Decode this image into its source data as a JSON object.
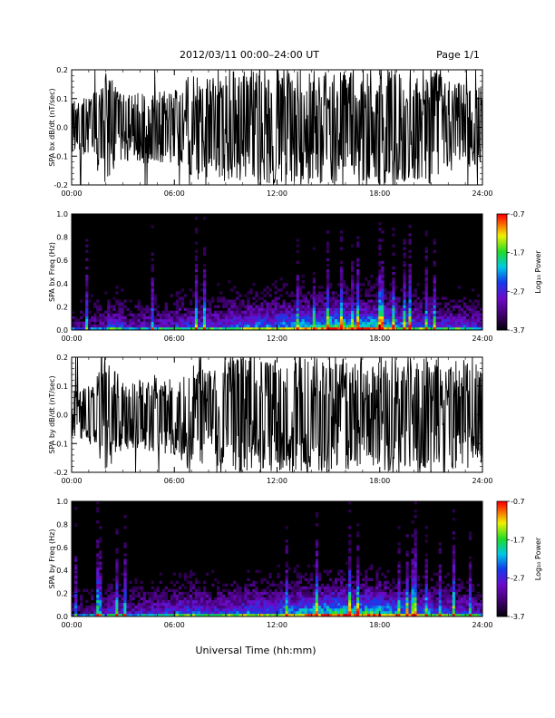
{
  "header": {
    "title": "2012/03/11   00:00–24:00 UT",
    "page": "Page 1/1"
  },
  "footer": {
    "xlabel": "Universal Time (hh:mm)"
  },
  "chart_data": [
    {
      "type": "line",
      "ylabel": "SPA bx dB/dt (nT/sec)",
      "xlabel": "",
      "x_ticks": [
        "00:00",
        "06:00",
        "12:00",
        "18:00",
        "24:00"
      ],
      "xlim": [
        0,
        24
      ],
      "ylim": [
        -0.2,
        0.2
      ],
      "y_ticks": [
        "-0.2",
        "-0.1",
        "0.0",
        "0.1",
        "0.2"
      ],
      "series": [
        {
          "x": [
            0,
            1,
            2,
            3,
            4,
            5,
            6,
            7,
            8,
            9,
            10,
            11,
            12,
            13,
            14,
            15,
            16,
            17,
            18,
            19,
            20,
            21,
            22,
            23,
            24
          ],
          "min": [
            -0.09,
            -0.1,
            -0.2,
            -0.12,
            -0.13,
            -0.12,
            -0.13,
            -0.2,
            -0.17,
            -0.2,
            -0.2,
            -0.2,
            -0.2,
            -0.2,
            -0.2,
            -0.2,
            -0.2,
            -0.2,
            -0.2,
            -0.2,
            -0.18,
            -0.2,
            -0.17,
            -0.15,
            -0.12
          ],
          "max": [
            0.1,
            0.11,
            0.2,
            0.13,
            0.12,
            0.13,
            0.14,
            0.2,
            0.17,
            0.2,
            0.2,
            0.2,
            0.2,
            0.2,
            0.2,
            0.2,
            0.2,
            0.2,
            0.2,
            0.2,
            0.17,
            0.2,
            0.17,
            0.15,
            0.14
          ]
        }
      ]
    },
    {
      "type": "heatmap",
      "ylabel": "SPA bx Freq (Hz)",
      "x_ticks": [
        "00:00",
        "06:00",
        "12:00",
        "18:00",
        "24:00"
      ],
      "xlim": [
        0,
        24
      ],
      "ylim": [
        0,
        1.0
      ],
      "y_ticks": [
        "0.0",
        "0.2",
        "0.4",
        "0.6",
        "0.8",
        "1.0"
      ],
      "colorbar": {
        "label": "Log₁₀ Power",
        "ticks": [
          "-0.7",
          "-1.7",
          "-2.7",
          "-3.7"
        ],
        "range": [
          -3.7,
          -0.7
        ]
      },
      "activity_by_hour": [
        0.3,
        0.35,
        0.5,
        0.4,
        0.4,
        0.45,
        0.5,
        0.5,
        0.5,
        0.55,
        0.6,
        0.6,
        0.65,
        0.7,
        0.7,
        0.8,
        0.75,
        0.75,
        0.7,
        0.6,
        0.55,
        0.5,
        0.5,
        0.45
      ]
    },
    {
      "type": "line",
      "ylabel": "SPA by dB/dt (nT/sec)",
      "xlabel": "",
      "x_ticks": [
        "00:00",
        "06:00",
        "12:00",
        "18:00",
        "24:00"
      ],
      "xlim": [
        0,
        24
      ],
      "ylim": [
        -0.2,
        0.2
      ],
      "y_ticks": [
        "-0.2",
        "-0.1",
        "0.0",
        "0.1",
        "0.2"
      ],
      "series": [
        {
          "x": [
            0,
            1,
            2,
            3,
            4,
            5,
            6,
            7,
            8,
            9,
            10,
            11,
            12,
            13,
            14,
            15,
            16,
            17,
            18,
            19,
            20,
            21,
            22,
            23,
            24
          ],
          "min": [
            -0.08,
            -0.1,
            -0.2,
            -0.12,
            -0.12,
            -0.13,
            -0.14,
            -0.2,
            -0.17,
            -0.19,
            -0.2,
            -0.2,
            -0.2,
            -0.2,
            -0.2,
            -0.2,
            -0.2,
            -0.2,
            -0.2,
            -0.2,
            -0.2,
            -0.2,
            -0.19,
            -0.2,
            -0.18
          ],
          "max": [
            0.09,
            0.1,
            0.2,
            0.12,
            0.13,
            0.14,
            0.13,
            0.2,
            0.18,
            0.19,
            0.2,
            0.2,
            0.2,
            0.2,
            0.2,
            0.2,
            0.2,
            0.2,
            0.2,
            0.2,
            0.2,
            0.2,
            0.18,
            0.2,
            0.17
          ]
        }
      ]
    },
    {
      "type": "heatmap",
      "ylabel": "SPA by Freq (Hz)",
      "x_ticks": [
        "00:00",
        "06:00",
        "12:00",
        "18:00",
        "24:00"
      ],
      "xlim": [
        0,
        24
      ],
      "ylim": [
        0,
        1.0
      ],
      "y_ticks": [
        "0.0",
        "0.2",
        "0.4",
        "0.6",
        "0.8",
        "1.0"
      ],
      "colorbar": {
        "label": "Log₁₀ Power",
        "ticks": [
          "-0.7",
          "-1.7",
          "-2.7",
          "-3.7"
        ],
        "range": [
          -3.7,
          -0.7
        ]
      },
      "activity_by_hour": [
        0.3,
        0.35,
        0.5,
        0.4,
        0.45,
        0.5,
        0.55,
        0.55,
        0.5,
        0.55,
        0.6,
        0.6,
        0.65,
        0.7,
        0.75,
        0.8,
        0.75,
        0.8,
        0.7,
        0.65,
        0.6,
        0.55,
        0.5,
        0.45
      ]
    }
  ]
}
